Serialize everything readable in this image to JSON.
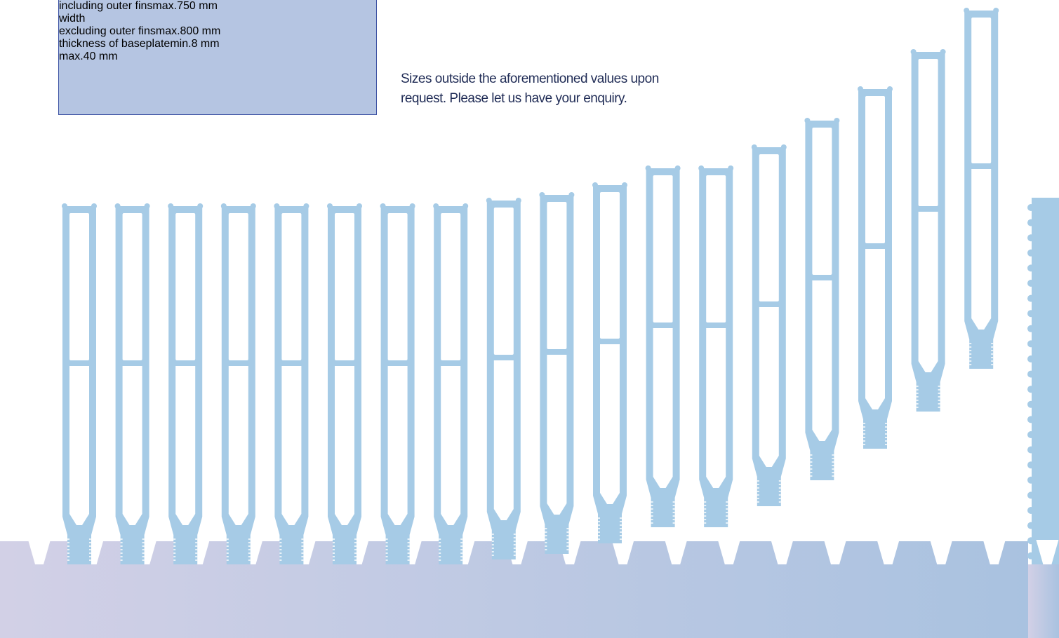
{
  "table": {
    "rows": [
      {
        "label": "including outer fins",
        "qualifier": "max.",
        "value": "750 mm"
      },
      {
        "label": "width"
      },
      {
        "label": "excluding outer fins",
        "qualifier": "max.",
        "value": "800 mm"
      },
      {
        "label": "thickness of baseplate",
        "qualifier": "min.",
        "value": "8 mm"
      },
      {
        "qualifier": "max.",
        "value": "40 mm"
      }
    ]
  },
  "note": {
    "lines": [
      "Sizes outside the aforementioned values upon",
      "request. Please let us have your enquiry."
    ]
  }
}
